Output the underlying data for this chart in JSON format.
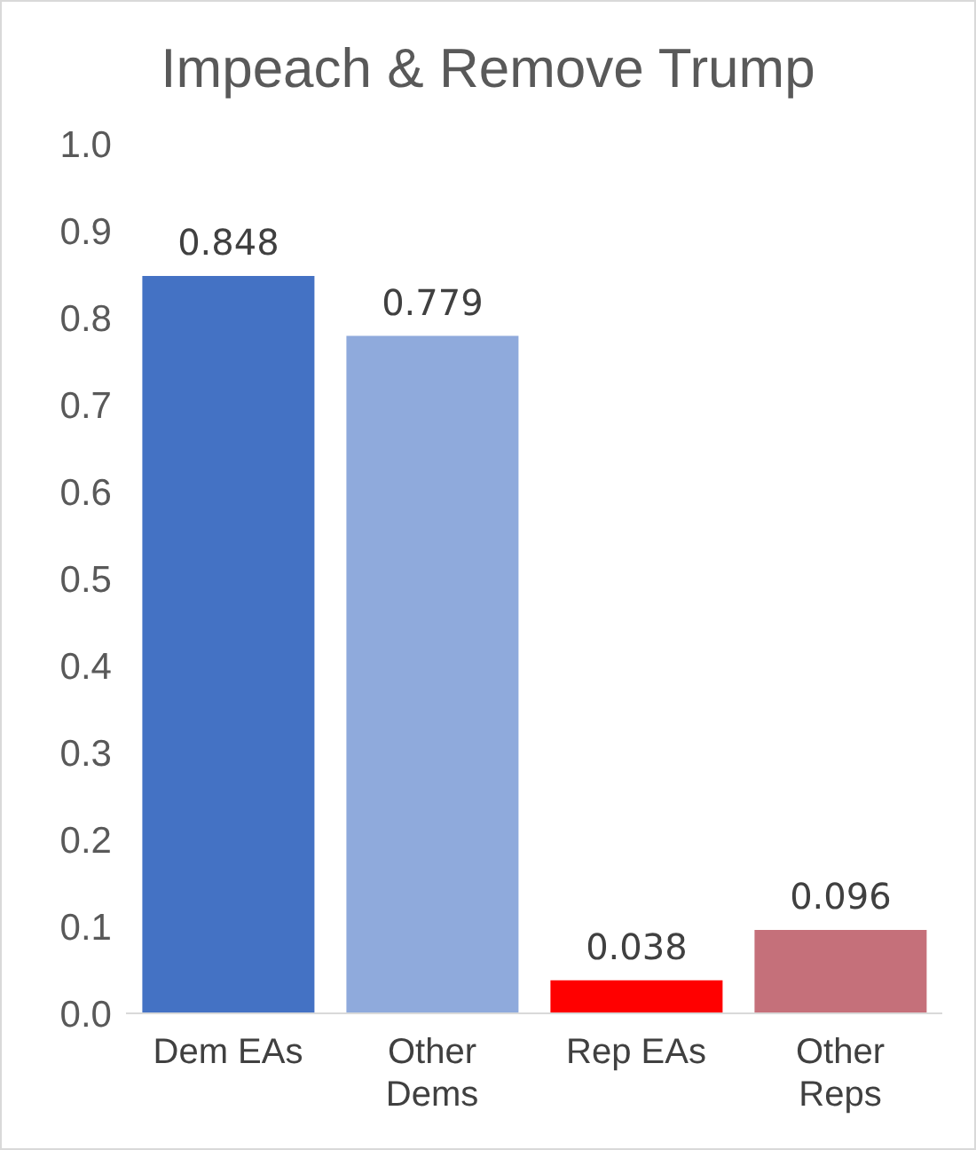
{
  "chart_data": {
    "type": "bar",
    "title": "Impeach & Remove Trump",
    "categories": [
      "Dem EAs",
      "Other Dems",
      "Rep EAs",
      "Other Reps"
    ],
    "values": [
      0.848,
      0.779,
      0.038,
      0.096
    ],
    "colors": [
      "#4472c4",
      "#8faadc",
      "#ff0000",
      "#c5707a"
    ],
    "ylim": [
      0,
      1
    ],
    "yticks": [
      {
        "value": 0,
        "label": "0.0"
      },
      0.1,
      0.2,
      0.3,
      0.4,
      0.5,
      0.6,
      0.7,
      0.8,
      0.9,
      {
        "value": 1,
        "label": "1.0"
      }
    ],
    "data_labels": true,
    "grid": false,
    "legend": false
  }
}
